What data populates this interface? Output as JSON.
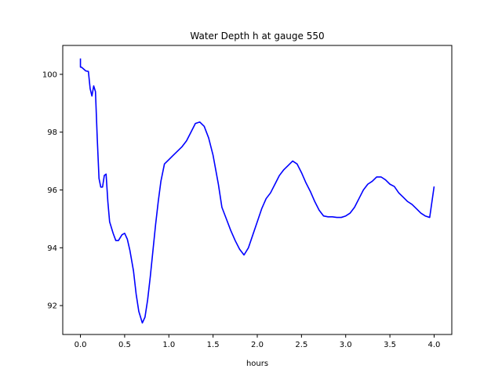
{
  "chart_data": {
    "type": "line",
    "title": "Water Depth h at gauge 550",
    "xlabel": "hours",
    "ylabel": "",
    "xlim": [
      -0.2,
      4.2
    ],
    "ylim": [
      91.0,
      101.0
    ],
    "grid": false,
    "x_ticks": [
      0.0,
      0.5,
      1.0,
      1.5,
      2.0,
      2.5,
      3.0,
      3.5,
      4.0
    ],
    "x_tick_labels": [
      "0.0",
      "0.5",
      "1.0",
      "1.5",
      "2.0",
      "2.5",
      "3.0",
      "3.5",
      "4.0"
    ],
    "y_ticks": [
      92,
      94,
      96,
      98,
      100
    ],
    "y_tick_labels": [
      "92",
      "94",
      "96",
      "98",
      "100"
    ],
    "line_color": "#0000ff",
    "series": [
      {
        "x": [
          0.0,
          0.0,
          0.01,
          0.03,
          0.06,
          0.09,
          0.11,
          0.13,
          0.15,
          0.17,
          0.19,
          0.21,
          0.23,
          0.25,
          0.27,
          0.29,
          0.31,
          0.33,
          0.35,
          0.37,
          0.4,
          0.43,
          0.47,
          0.5,
          0.53,
          0.56,
          0.6,
          0.63,
          0.66,
          0.7,
          0.73,
          0.76,
          0.79,
          0.82,
          0.85,
          0.88,
          0.91,
          0.95,
          1.0,
          1.05,
          1.1,
          1.15,
          1.2,
          1.25,
          1.3,
          1.35,
          1.4,
          1.45,
          1.5,
          1.53,
          1.56,
          1.6,
          1.65,
          1.7,
          1.75,
          1.8,
          1.85,
          1.9,
          1.95,
          2.0,
          2.05,
          2.1,
          2.15,
          2.2,
          2.25,
          2.3,
          2.35,
          2.4,
          2.45,
          2.5,
          2.55,
          2.6,
          2.65,
          2.7,
          2.75,
          2.8,
          2.85,
          2.9,
          2.95,
          3.0,
          3.05,
          3.1,
          3.15,
          3.2,
          3.25,
          3.3,
          3.35,
          3.4,
          3.45,
          3.5,
          3.55,
          3.6,
          3.65,
          3.7,
          3.75,
          3.8,
          3.85,
          3.9,
          3.95,
          4.0
        ],
        "values": [
          100.55,
          100.25,
          100.25,
          100.2,
          100.12,
          100.1,
          99.5,
          99.25,
          99.6,
          99.4,
          97.8,
          96.4,
          96.1,
          96.1,
          96.5,
          96.55,
          95.6,
          94.9,
          94.7,
          94.5,
          94.25,
          94.25,
          94.45,
          94.5,
          94.3,
          93.9,
          93.2,
          92.4,
          91.8,
          91.4,
          91.6,
          92.2,
          93.0,
          93.9,
          94.8,
          95.6,
          96.3,
          96.9,
          97.05,
          97.2,
          97.35,
          97.5,
          97.7,
          98.0,
          98.3,
          98.35,
          98.2,
          97.8,
          97.2,
          96.7,
          96.2,
          95.4,
          95.0,
          94.6,
          94.25,
          93.95,
          93.75,
          94.0,
          94.45,
          94.9,
          95.35,
          95.7,
          95.9,
          96.2,
          96.5,
          96.7,
          96.85,
          97.0,
          96.9,
          96.6,
          96.25,
          95.95,
          95.6,
          95.3,
          95.1,
          95.07,
          95.07,
          95.05,
          95.05,
          95.1,
          95.2,
          95.4,
          95.7,
          96.0,
          96.2,
          96.3,
          96.45,
          96.45,
          96.35,
          96.2,
          96.12,
          95.9,
          95.75,
          95.6,
          95.5,
          95.35,
          95.2,
          95.1,
          95.05,
          96.12
        ]
      }
    ]
  }
}
